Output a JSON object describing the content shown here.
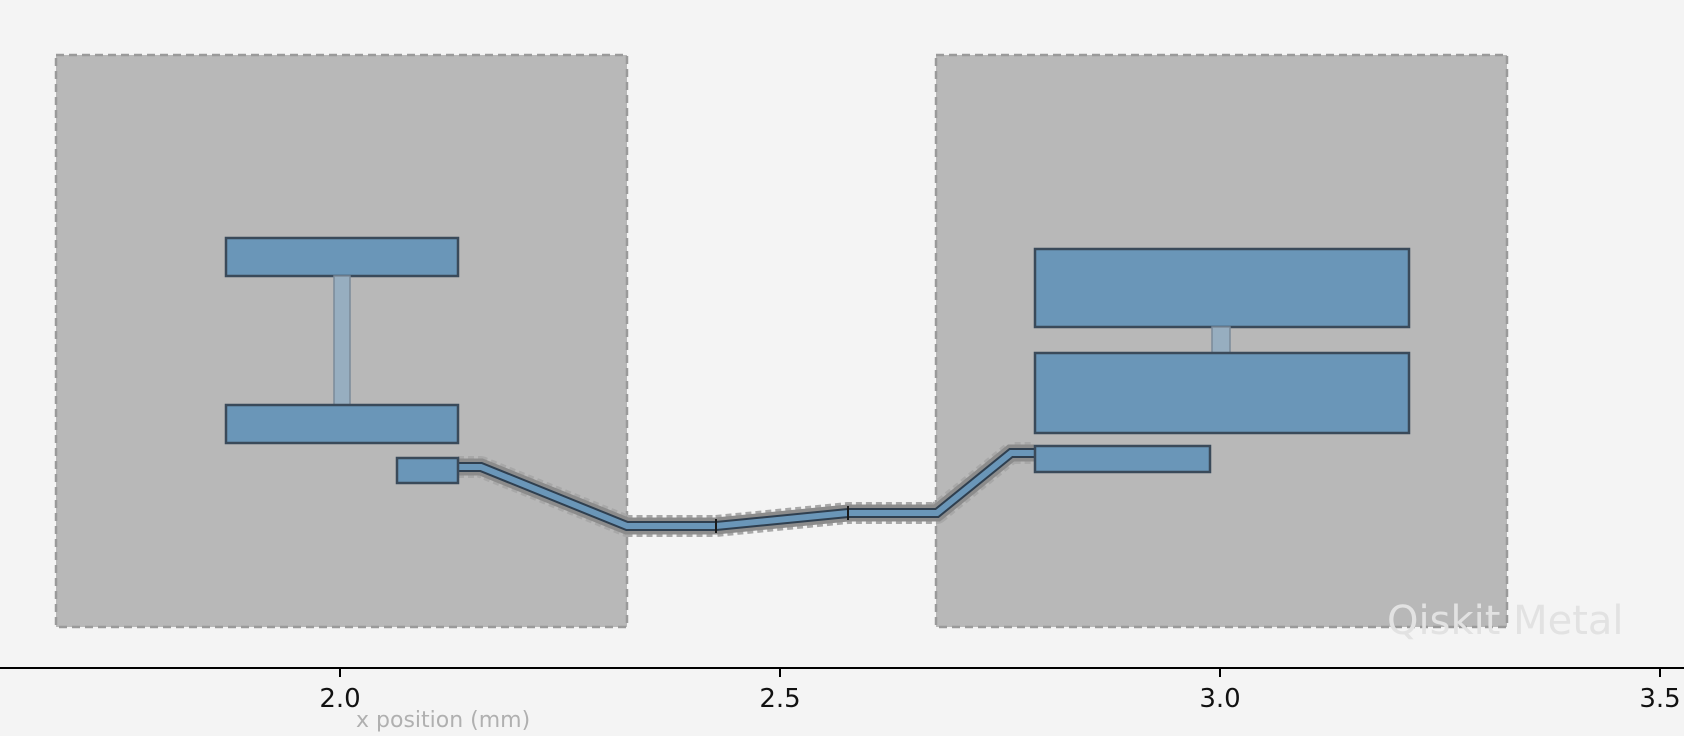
{
  "axis": {
    "xlabel": "x position (mm)",
    "ticks": [
      {
        "value": 2.0,
        "label": "2.0"
      },
      {
        "value": 2.5,
        "label": "2.5"
      },
      {
        "value": 3.0,
        "label": "3.0"
      },
      {
        "value": 3.5,
        "label": "3.5"
      }
    ]
  },
  "watermark": "Qiskit Metal",
  "colors": {
    "background": "#f4f4f4",
    "ground_plane": "#b8b8b8",
    "ground_plane_border": "#9a9a9a",
    "metal": "#6a96b8",
    "metal_border": "#3a4a5a",
    "junction": "#97aec0",
    "junction_border": "#7a8a99",
    "trace_outline": "#8a8a8a",
    "axis": "#000000"
  }
}
